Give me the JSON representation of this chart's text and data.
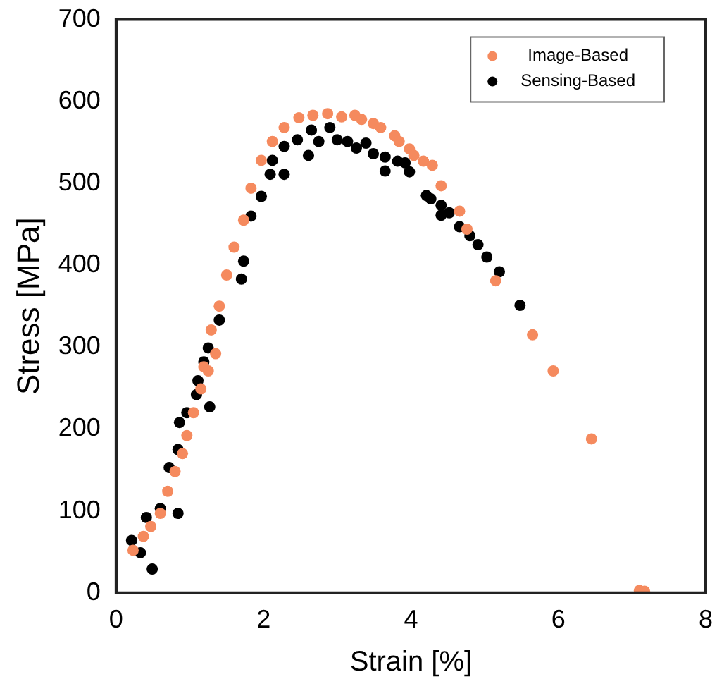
{
  "chart_data": {
    "type": "scatter",
    "xlabel": "Strain [%]",
    "ylabel": "Stress [MPa]",
    "xlim": [
      0,
      8
    ],
    "ylim": [
      0,
      700
    ],
    "xticks": [
      0,
      2,
      4,
      6,
      8
    ],
    "yticks": [
      0,
      100,
      200,
      300,
      400,
      500,
      600,
      700
    ],
    "grid": false,
    "legend": "top right",
    "marker": "circle",
    "series": [
      {
        "name": "Image-Based",
        "color": "#f58a5e",
        "x": [
          0.23,
          0.37,
          0.47,
          0.6,
          0.7,
          0.8,
          0.9,
          0.96,
          1.05,
          1.15,
          1.19,
          1.25,
          1.29,
          1.35,
          1.4,
          1.5,
          1.6,
          1.73,
          1.83,
          1.97,
          2.12,
          2.28,
          2.48,
          2.67,
          2.87,
          3.06,
          3.24,
          3.33,
          3.49,
          3.59,
          3.78,
          3.84,
          3.98,
          4.04,
          4.17,
          4.29,
          4.41,
          4.66,
          4.76,
          5.15,
          5.65,
          5.93,
          6.45,
          7.1,
          7.17
        ],
        "values": [
          52,
          69,
          81,
          97,
          124,
          148,
          170,
          192,
          220,
          249,
          276,
          271,
          321,
          292,
          350,
          388,
          422,
          455,
          494,
          528,
          551,
          568,
          580,
          583,
          585,
          581,
          583,
          578,
          573,
          568,
          558,
          551,
          542,
          534,
          527,
          522,
          497,
          466,
          444,
          381,
          315,
          271,
          188,
          3,
          2
        ]
      },
      {
        "name": "Sensing-Based",
        "color": "#000000",
        "x": [
          0.21,
          0.33,
          0.49,
          0.41,
          0.6,
          0.84,
          0.72,
          0.84,
          0.86,
          0.96,
          1.09,
          1.27,
          1.11,
          1.25,
          1.19,
          1.4,
          1.7,
          1.73,
          1.83,
          1.97,
          2.09,
          2.12,
          2.28,
          2.28,
          2.46,
          2.61,
          2.65,
          2.75,
          2.9,
          3.0,
          3.14,
          3.26,
          3.35,
          3.39,
          3.49,
          3.65,
          3.65,
          3.82,
          3.92,
          3.98,
          4.21,
          4.27,
          4.41,
          4.41,
          4.52,
          4.66,
          4.8,
          4.91,
          5.03,
          5.2,
          5.48
        ],
        "values": [
          64,
          49,
          29,
          92,
          103,
          97,
          153,
          175,
          208,
          220,
          242,
          227,
          259,
          299,
          282,
          333,
          383,
          405,
          460,
          484,
          511,
          528,
          511,
          545,
          553,
          534,
          565,
          551,
          568,
          553,
          551,
          543,
          null,
          549,
          536,
          532,
          515,
          527,
          525,
          514,
          485,
          481,
          473,
          461,
          464,
          447,
          436,
          425,
          410,
          392,
          351
        ]
      }
    ]
  }
}
